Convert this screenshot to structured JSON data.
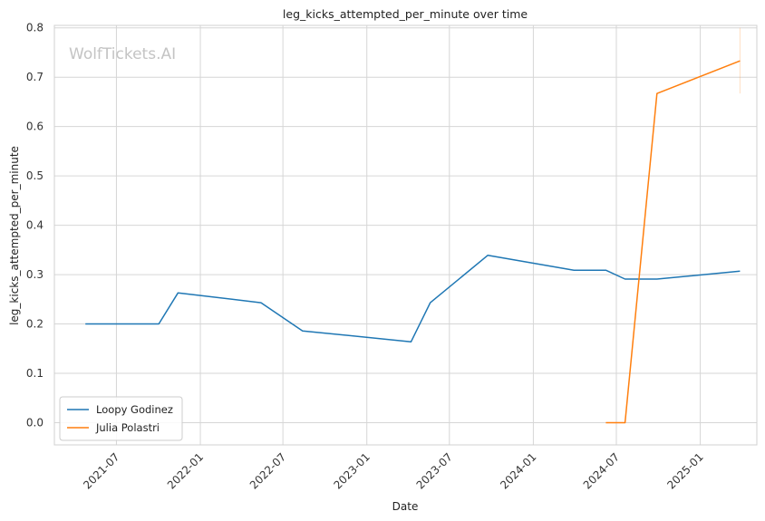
{
  "chart_data": {
    "type": "line",
    "title": "leg_kicks_attempted_per_minute over time",
    "xlabel": "Date",
    "ylabel": "leg_kicks_attempted_per_minute",
    "watermark": "WolfTickets.AI",
    "xlim": [
      "2021-02-15",
      "2025-05-05"
    ],
    "ylim": [
      -0.045,
      0.805
    ],
    "x_ticks": [
      "2021-07-01",
      "2022-01-01",
      "2022-07-01",
      "2023-01-01",
      "2023-07-01",
      "2024-01-01",
      "2024-07-01",
      "2025-01-01"
    ],
    "x_tick_labels": [
      "2021-07",
      "2022-01",
      "2022-07",
      "2023-01",
      "2023-07",
      "2024-01",
      "2024-07",
      "2025-01"
    ],
    "y_ticks": [
      0.0,
      0.1,
      0.2,
      0.3,
      0.4,
      0.5,
      0.6,
      0.7,
      0.8
    ],
    "y_tick_labels": [
      "0.0",
      "0.1",
      "0.2",
      "0.3",
      "0.4",
      "0.5",
      "0.6",
      "0.7",
      "0.8"
    ],
    "grid": true,
    "legend_position": "lower-left",
    "series": [
      {
        "name": "Loopy Godinez",
        "color": "#1f77b4",
        "points": [
          [
            "2021-04-24",
            0.2
          ],
          [
            "2021-10-02",
            0.2
          ],
          [
            "2021-11-13",
            0.263
          ],
          [
            "2022-05-14",
            0.243
          ],
          [
            "2022-08-13",
            0.186
          ],
          [
            "2023-04-08",
            0.164
          ],
          [
            "2023-05-20",
            0.243
          ],
          [
            "2023-09-23",
            0.339
          ],
          [
            "2024-03-30",
            0.309
          ],
          [
            "2024-06-08",
            0.309
          ],
          [
            "2024-07-20",
            0.291
          ],
          [
            "2024-09-28",
            0.291
          ],
          [
            "2025-03-29",
            0.307
          ]
        ]
      },
      {
        "name": "Julia Polastri",
        "color": "#ff7f0e",
        "points": [
          [
            "2024-06-08",
            0.0
          ],
          [
            "2024-07-20",
            0.0
          ],
          [
            "2024-09-28",
            0.667
          ],
          [
            "2025-03-29",
            0.733
          ]
        ],
        "error_band": {
          "x": "2025-03-29",
          "low": 0.667,
          "high": 0.8
        }
      }
    ]
  }
}
